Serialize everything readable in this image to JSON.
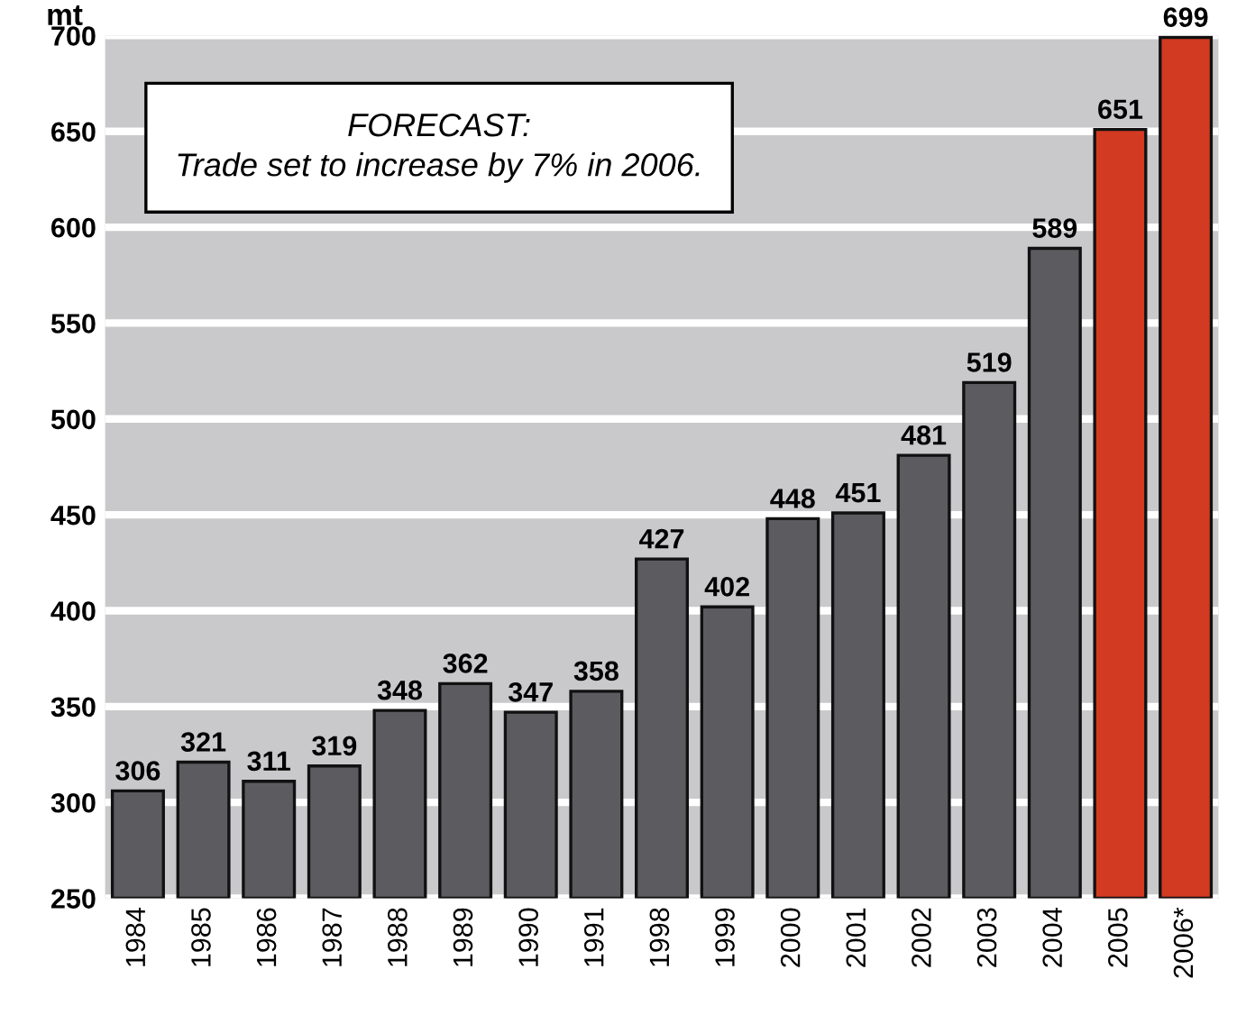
{
  "chart_data": {
    "type": "bar",
    "ylabel": "mt",
    "categories": [
      "1984",
      "1985",
      "1986",
      "1987",
      "1988",
      "1989",
      "1990",
      "1991",
      "1998",
      "1999",
      "2000",
      "2001",
      "2002",
      "2003",
      "2004",
      "2005",
      "2006*"
    ],
    "values": [
      306,
      321,
      311,
      319,
      348,
      362,
      347,
      358,
      427,
      402,
      448,
      451,
      481,
      519,
      589,
      651,
      699
    ],
    "colors": [
      "#5b5b60",
      "#5b5b60",
      "#5b5b60",
      "#5b5b60",
      "#5b5b60",
      "#5b5b60",
      "#5b5b60",
      "#5b5b60",
      "#5b5b60",
      "#5b5b60",
      "#5b5b60",
      "#5b5b60",
      "#5b5b60",
      "#5b5b60",
      "#5b5b60",
      "#d23a22",
      "#d23a22"
    ],
    "ylim": [
      250,
      700
    ],
    "yticks": [
      250,
      300,
      350,
      400,
      450,
      500,
      550,
      600,
      650,
      700
    ],
    "grid": "y",
    "data_labels": true,
    "legend": false,
    "annotations": [
      "FORECAST:\nTrade set to increase by 7% in 2006."
    ]
  }
}
